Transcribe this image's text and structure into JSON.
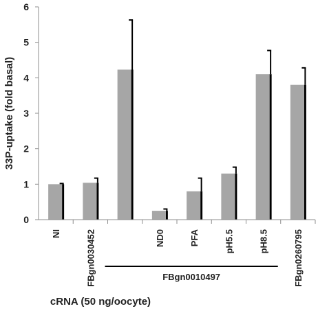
{
  "chart_data": {
    "type": "bar",
    "ylabel": "33P-uptake (fold basal)",
    "xlabel": "cRNA (50 ng/oocyte)",
    "ylim": [
      0,
      6
    ],
    "yticks": [
      "0",
      "1",
      "2",
      "3",
      "4",
      "5",
      "6"
    ],
    "grid": false,
    "categories": [
      "NI",
      "FBgn0030452",
      "",
      "ND0",
      "PFA",
      "pH5.5",
      "pH8.5",
      "FBgn0260795"
    ],
    "values": [
      1.0,
      1.04,
      4.23,
      0.25,
      0.8,
      1.3,
      4.1,
      3.8
    ],
    "errors": [
      0.02,
      0.13,
      1.4,
      0.05,
      0.37,
      0.18,
      0.67,
      0.48
    ],
    "group_label": "FBgn0010497",
    "colors": {
      "bar": "#a6a6a6",
      "shadow": "#000000",
      "axis": "#8c8c8c"
    }
  }
}
